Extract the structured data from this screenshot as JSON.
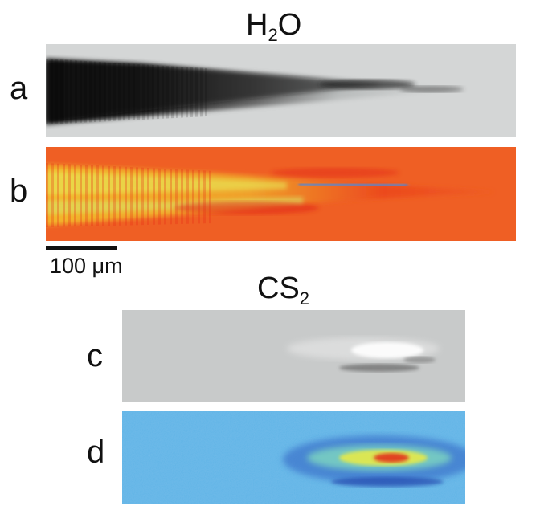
{
  "figure": {
    "water": {
      "title_main": "H",
      "title_sub": "2",
      "title_tail": "O",
      "panel_a_label": "a",
      "panel_b_label": "b"
    },
    "scale_bar": {
      "label": "100 μm"
    },
    "cs2": {
      "title_main": "CS",
      "title_sub": "2",
      "panel_c_label": "c",
      "panel_d_label": "d"
    }
  }
}
